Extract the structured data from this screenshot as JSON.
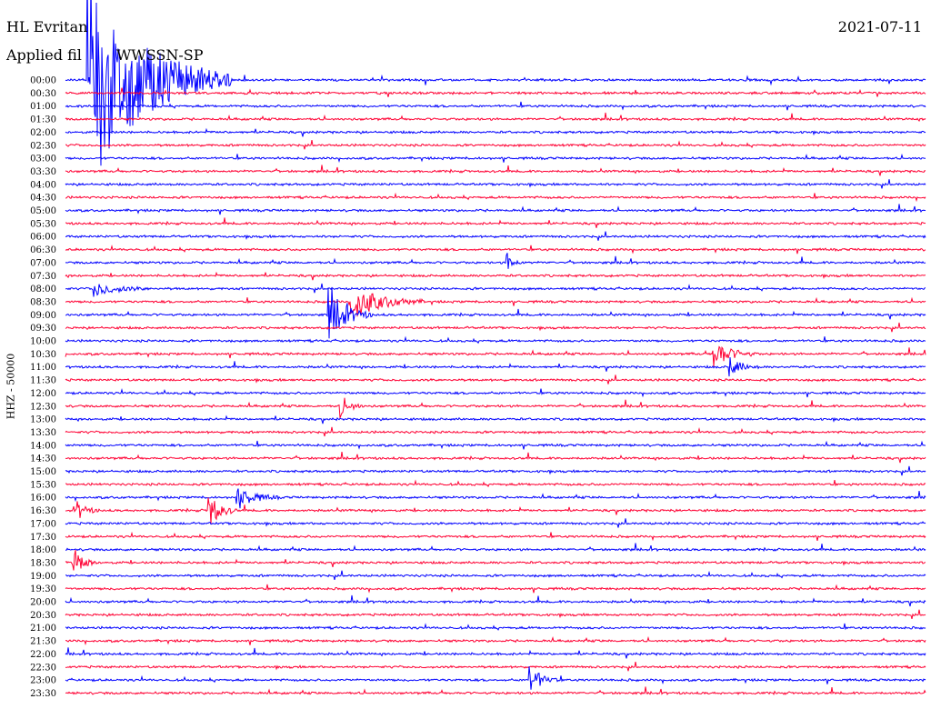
{
  "header": {
    "station": "HL Evritan",
    "filter": "Applied fil",
    "filter_suffix": "WWSSN-SP",
    "date": "2021-07-11"
  },
  "chart_data": {
    "type": "line",
    "ylabel": "HHZ - 50000",
    "xlabel": "",
    "title": "",
    "grid": false,
    "colors": [
      "#0000ff",
      "#ff0033"
    ],
    "times": [
      "00:00",
      "00:30",
      "01:00",
      "01:30",
      "02:00",
      "02:30",
      "03:00",
      "03:30",
      "04:00",
      "04:30",
      "05:00",
      "05:30",
      "06:00",
      "06:30",
      "07:00",
      "07:30",
      "08:00",
      "08:30",
      "09:00",
      "09:30",
      "10:00",
      "10:30",
      "11:00",
      "11:30",
      "12:00",
      "12:30",
      "13:00",
      "13:30",
      "14:00",
      "14:30",
      "15:00",
      "15:30",
      "16:00",
      "16:30",
      "17:00",
      "17:30",
      "18:00",
      "18:30",
      "19:00",
      "19:30",
      "20:00",
      "20:30",
      "21:00",
      "21:30",
      "22:00",
      "22:30",
      "23:00",
      "23:30"
    ],
    "events": [
      {
        "row": 0,
        "minute": 0.8,
        "amplitude": 120,
        "duration": 5
      },
      {
        "row": 16,
        "minute": 1.0,
        "amplitude": 8,
        "duration": 2
      },
      {
        "row": 18,
        "minute": 9.2,
        "amplitude": 28,
        "duration": 1.5
      },
      {
        "row": 17,
        "minute": 10.0,
        "amplitude": 20,
        "duration": 2.5
      },
      {
        "row": 14,
        "minute": 15.4,
        "amplitude": 10,
        "duration": 0.6
      },
      {
        "row": 21,
        "minute": 22.6,
        "amplitude": 16,
        "duration": 1.5
      },
      {
        "row": 22,
        "minute": 23.2,
        "amplitude": 10,
        "duration": 1
      },
      {
        "row": 25,
        "minute": 9.6,
        "amplitude": 12,
        "duration": 0.8
      },
      {
        "row": 32,
        "minute": 6.0,
        "amplitude": 12,
        "duration": 1.5
      },
      {
        "row": 33,
        "minute": 5.0,
        "amplitude": 20,
        "duration": 1
      },
      {
        "row": 33,
        "minute": 0.4,
        "amplitude": 10,
        "duration": 0.8
      },
      {
        "row": 37,
        "minute": 0.3,
        "amplitude": 16,
        "duration": 0.8
      },
      {
        "row": 46,
        "minute": 16.2,
        "amplitude": 16,
        "duration": 1
      }
    ]
  }
}
